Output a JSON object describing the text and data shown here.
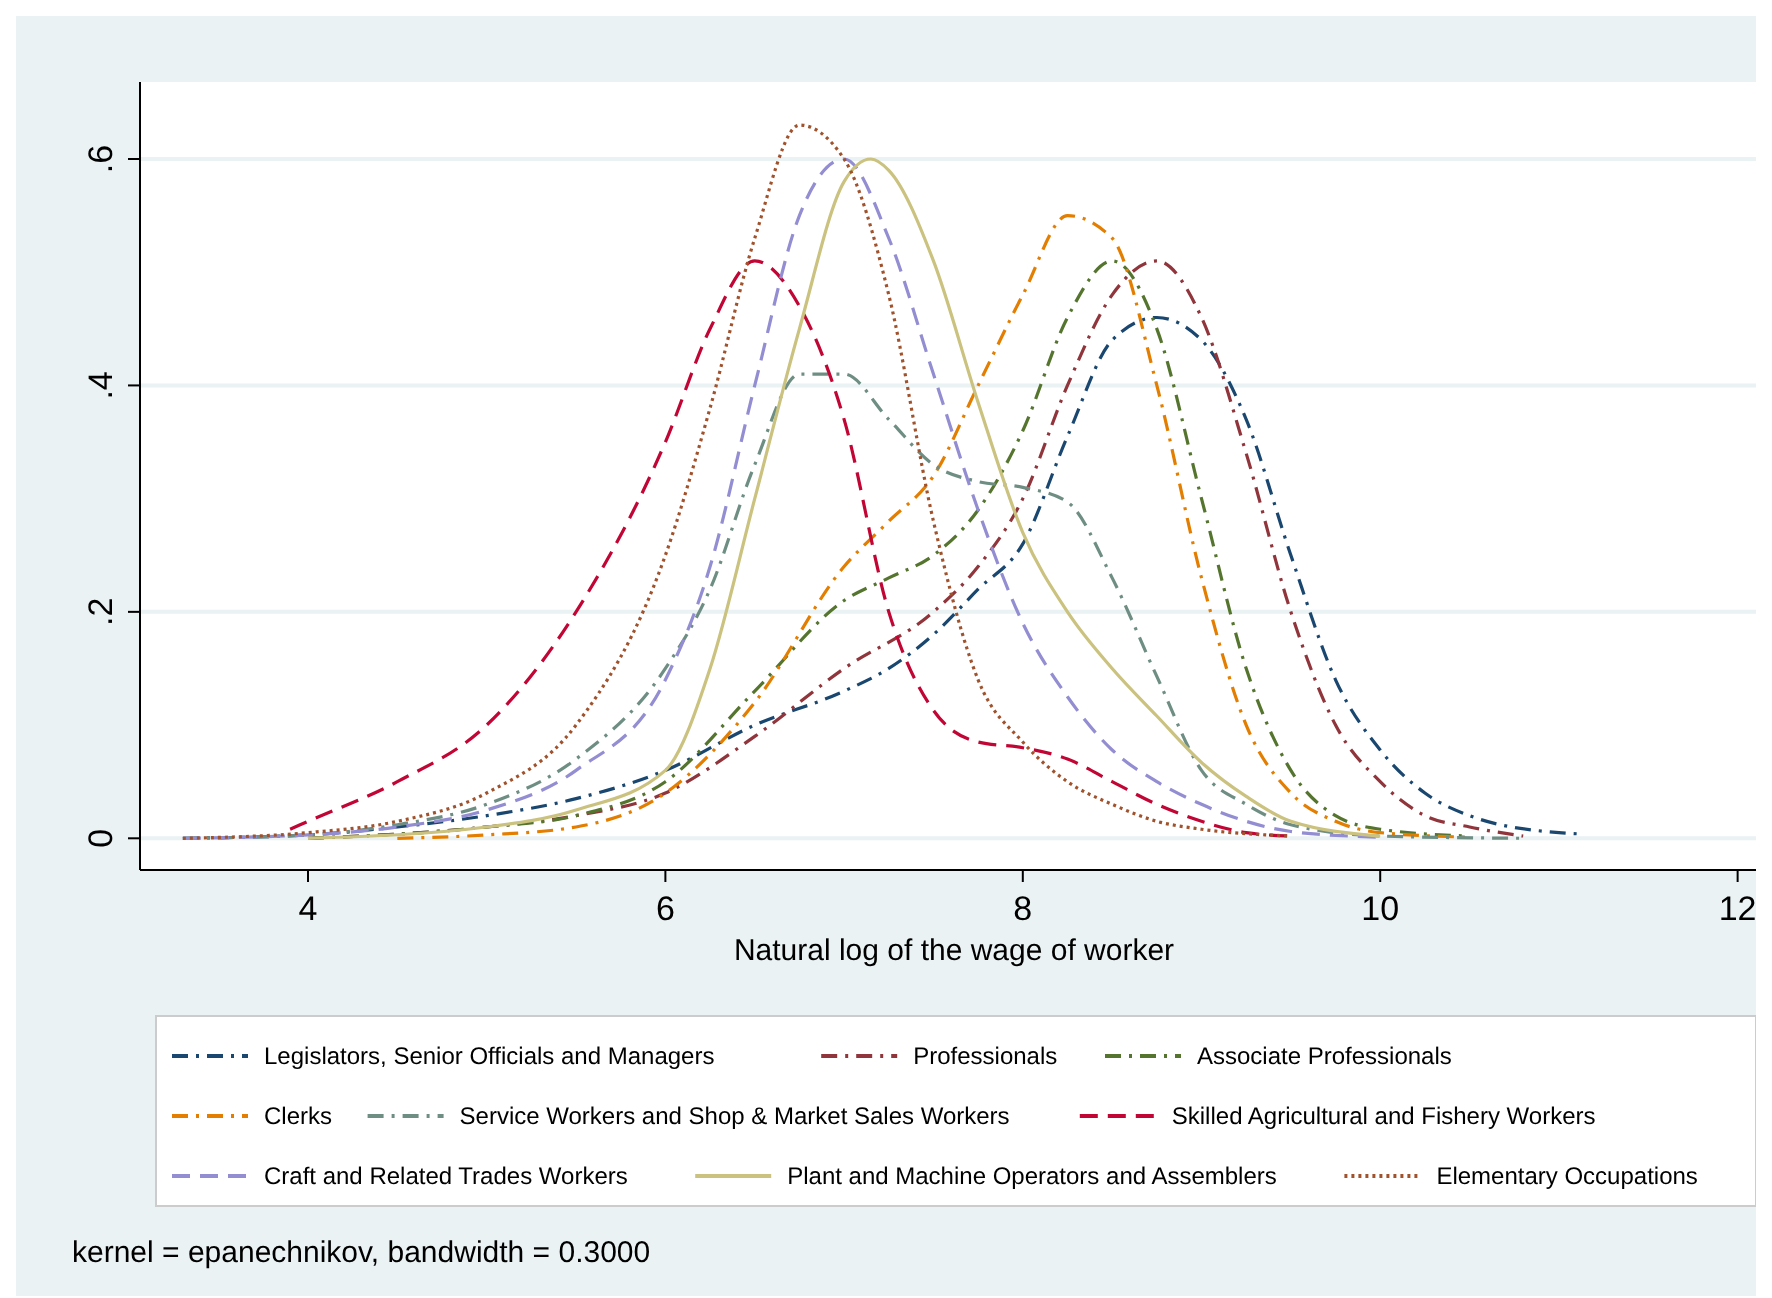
{
  "chart_data": {
    "type": "line",
    "xlabel": "Natural log of the wage of worker",
    "xlim": [
      3.06,
      12.17
    ],
    "xticks": [
      4,
      6,
      8,
      10,
      12
    ],
    "ylim": [
      -0.028,
      0.668
    ],
    "yticks": [
      {
        "value": 0,
        "label": "0"
      },
      {
        "value": 0.2,
        "label": ".2"
      },
      {
        "value": 0.4,
        "label": ".4"
      },
      {
        "value": 0.6,
        "label": ".6"
      }
    ],
    "grid": "y",
    "legend": "bottom",
    "annotations": [
      "kernel = epanechnikov, bandwidth = 0.3000"
    ],
    "series": [
      {
        "name": "Legislators, Senior Officials and Managers",
        "color": "#1a476f",
        "line_style": "dashdot",
        "x": [
          3.3,
          4,
          4.5,
          5,
          5.5,
          6,
          6.5,
          7,
          7.25,
          7.5,
          7.75,
          8,
          8.25,
          8.5,
          8.75,
          9,
          9.25,
          9.5,
          9.75,
          10,
          10.25,
          10.5,
          11,
          11.1
        ],
        "values": [
          0,
          0.003,
          0.01,
          0.02,
          0.035,
          0.06,
          0.1,
          0.13,
          0.15,
          0.18,
          0.22,
          0.26,
          0.355,
          0.44,
          0.46,
          0.44,
          0.37,
          0.25,
          0.14,
          0.078,
          0.04,
          0.02,
          0.005,
          0.004
        ]
      },
      {
        "name": "Professionals",
        "color": "#90353b",
        "line_style": "dashdot",
        "x": [
          4,
          5,
          5.5,
          6,
          6.5,
          7,
          7.5,
          7.75,
          8,
          8.25,
          8.5,
          8.75,
          9,
          9.25,
          9.5,
          9.75,
          10,
          10.25,
          10.5,
          10.8
        ],
        "values": [
          0,
          0.01,
          0.02,
          0.04,
          0.09,
          0.15,
          0.2,
          0.24,
          0.3,
          0.4,
          0.48,
          0.51,
          0.46,
          0.34,
          0.2,
          0.1,
          0.05,
          0.02,
          0.01,
          0.002
        ]
      },
      {
        "name": "Associate Professionals",
        "color": "#55752f",
        "line_style": "dashdot",
        "x": [
          4,
          5,
          5.5,
          6,
          6.5,
          7,
          7.25,
          7.5,
          7.75,
          8,
          8.25,
          8.5,
          8.75,
          9,
          9.25,
          9.5,
          9.75,
          10,
          10.5
        ],
        "values": [
          0,
          0.01,
          0.02,
          0.05,
          0.13,
          0.21,
          0.23,
          0.25,
          0.29,
          0.36,
          0.46,
          0.51,
          0.45,
          0.3,
          0.15,
          0.06,
          0.02,
          0.008,
          0.002
        ]
      },
      {
        "name": "Clerks",
        "color": "#e37e00",
        "line_style": "dashdot",
        "x": [
          4.5,
          5,
          5.5,
          6,
          6.5,
          7,
          7.25,
          7.5,
          7.75,
          8,
          8.25,
          8.5,
          8.75,
          9,
          9.25,
          9.5,
          9.75,
          10,
          10.5
        ],
        "values": [
          0,
          0.003,
          0.01,
          0.04,
          0.12,
          0.24,
          0.28,
          0.32,
          0.4,
          0.48,
          0.55,
          0.53,
          0.4,
          0.23,
          0.1,
          0.04,
          0.015,
          0.005,
          0.001
        ]
      },
      {
        "name": "Service Workers and Shop & Market Sales Workers",
        "color": "#6e8e84",
        "line_style": "dashdot",
        "x": [
          3.3,
          4,
          4.5,
          5,
          5.5,
          6,
          6.25,
          6.5,
          6.75,
          7,
          7.25,
          7.5,
          7.75,
          8,
          8.25,
          8.5,
          8.75,
          9,
          9.25,
          9.5,
          10,
          10.8
        ],
        "values": [
          0,
          0.003,
          0.012,
          0.03,
          0.07,
          0.15,
          0.22,
          0.33,
          0.41,
          0.41,
          0.37,
          0.33,
          0.315,
          0.31,
          0.297,
          0.23,
          0.143,
          0.06,
          0.03,
          0.012,
          0.002,
          0
        ]
      },
      {
        "name": "Skilled Agricultural and Fishery Workers",
        "color": "#c10534",
        "line_style": "dashed",
        "x": [
          3.9,
          4,
          4.5,
          5,
          5.5,
          6,
          6.25,
          6.5,
          6.75,
          7,
          7.25,
          7.5,
          7.75,
          8,
          8.25,
          8.5,
          8.75,
          9,
          9.25,
          9.5
        ],
        "values": [
          0.008,
          0.015,
          0.05,
          0.1,
          0.2,
          0.35,
          0.45,
          0.51,
          0.47,
          0.37,
          0.2,
          0.113,
          0.085,
          0.08,
          0.07,
          0.05,
          0.03,
          0.015,
          0.005,
          0.002
        ]
      },
      {
        "name": "Craft and Related Trades Workers",
        "color": "#938dd2",
        "line_style": "dashed",
        "x": [
          3.3,
          4,
          4.5,
          5,
          5.5,
          6,
          6.25,
          6.5,
          6.75,
          7,
          7.25,
          7.5,
          7.75,
          8,
          8.25,
          8.5,
          8.75,
          9,
          9.25,
          9.5,
          10
        ],
        "values": [
          0,
          0.003,
          0.01,
          0.025,
          0.06,
          0.14,
          0.24,
          0.4,
          0.55,
          0.6,
          0.53,
          0.41,
          0.29,
          0.19,
          0.125,
          0.078,
          0.05,
          0.03,
          0.015,
          0.006,
          0.001
        ]
      },
      {
        "name": "Plant and Machine Operators and Assemblers",
        "color": "#cac27e",
        "line_style": "solid",
        "x": [
          4,
          5,
          5.5,
          6,
          6.25,
          6.5,
          6.75,
          7,
          7.15,
          7.25,
          7.5,
          7.75,
          8,
          8.25,
          8.5,
          8.75,
          9,
          9.25,
          9.5,
          10
        ],
        "values": [
          0,
          0.01,
          0.025,
          0.06,
          0.15,
          0.3,
          0.45,
          0.58,
          0.6,
          0.59,
          0.51,
          0.385,
          0.27,
          0.2,
          0.15,
          0.108,
          0.067,
          0.037,
          0.015,
          0.002
        ]
      },
      {
        "name": "Elementary Occupations",
        "color": "#a0522d",
        "line_style": "dotted",
        "x": [
          3.3,
          4,
          4.5,
          5,
          5.5,
          6,
          6.25,
          6.5,
          6.75,
          7,
          7.25,
          7.5,
          7.75,
          8,
          8.25,
          8.5,
          8.75,
          9,
          9.5
        ],
        "values": [
          0,
          0.005,
          0.015,
          0.04,
          0.1,
          0.25,
          0.38,
          0.53,
          0.63,
          0.6,
          0.48,
          0.28,
          0.14,
          0.085,
          0.05,
          0.03,
          0.015,
          0.008,
          0.002
        ]
      }
    ]
  }
}
